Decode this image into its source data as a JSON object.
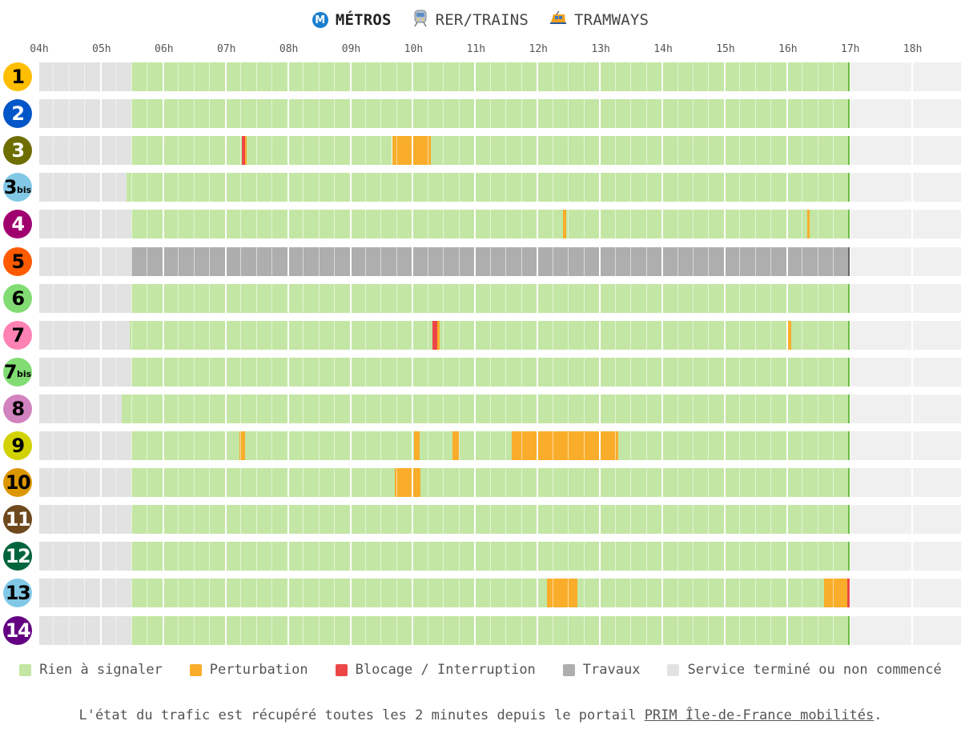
{
  "tabs": [
    {
      "label": "MÉTROS",
      "icon": "metro-icon",
      "active": true
    },
    {
      "label": "RER/TRAINS",
      "icon": "train-icon",
      "active": false
    },
    {
      "label": "TRAMWAYS",
      "icon": "tram-icon",
      "active": false
    }
  ],
  "metro_icon_letter": "M",
  "timeline": {
    "hours": [
      "04h",
      "05h",
      "06h",
      "07h",
      "08h",
      "09h",
      "10h",
      "11h",
      "12h",
      "13h",
      "14h",
      "15h",
      "16h",
      "17h",
      "18h"
    ],
    "start_hour": 4,
    "end_hour": 18.8,
    "current_time_hour": 17.0
  },
  "colors": {
    "ok": "#c3e6a4",
    "perturbation": "#f9ad2a",
    "blocage": "#ec4747",
    "travaux": "#aeaeae",
    "closed": "#e2e2e2",
    "future": "#f0f0f0",
    "nowline_ok": "#6bbd45",
    "nowline_travaux": "#666666"
  },
  "lines": [
    {
      "id": "line-1",
      "num": "1",
      "bis": "",
      "color": "#ffbe00",
      "text": "#000000",
      "segments": [
        {
          "s": 4,
          "e": 5.5,
          "st": "closed"
        },
        {
          "s": 5.5,
          "e": 17,
          "st": "ok"
        }
      ]
    },
    {
      "id": "line-2",
      "num": "2",
      "bis": "",
      "color": "#0055c8",
      "text": "#ffffff",
      "segments": [
        {
          "s": 4,
          "e": 5.5,
          "st": "closed"
        },
        {
          "s": 5.5,
          "e": 17,
          "st": "ok"
        }
      ]
    },
    {
      "id": "line-3",
      "num": "3",
      "bis": "",
      "color": "#6e6e00",
      "text": "#ffffff",
      "segments": [
        {
          "s": 4,
          "e": 5.5,
          "st": "closed"
        },
        {
          "s": 5.5,
          "e": 7.27,
          "st": "ok"
        },
        {
          "s": 7.27,
          "e": 7.33,
          "st": "blocage"
        },
        {
          "s": 7.33,
          "e": 7.35,
          "st": "perturbation"
        },
        {
          "s": 7.35,
          "e": 9.68,
          "st": "ok"
        },
        {
          "s": 9.68,
          "e": 10.3,
          "st": "perturbation"
        },
        {
          "s": 10.3,
          "e": 17,
          "st": "ok"
        }
      ]
    },
    {
      "id": "line-3bis",
      "num": "3",
      "bis": "bis",
      "color": "#82c8e6",
      "text": "#000000",
      "segments": [
        {
          "s": 4,
          "e": 5.43,
          "st": "closed"
        },
        {
          "s": 5.43,
          "e": 17,
          "st": "ok"
        }
      ]
    },
    {
      "id": "line-4",
      "num": "4",
      "bis": "",
      "color": "#a0006e",
      "text": "#ffffff",
      "segments": [
        {
          "s": 4,
          "e": 5.5,
          "st": "closed"
        },
        {
          "s": 5.5,
          "e": 12.42,
          "st": "ok"
        },
        {
          "s": 12.42,
          "e": 12.47,
          "st": "perturbation"
        },
        {
          "s": 12.47,
          "e": 16.33,
          "st": "ok"
        },
        {
          "s": 16.33,
          "e": 16.38,
          "st": "perturbation"
        },
        {
          "s": 16.38,
          "e": 17,
          "st": "ok"
        }
      ]
    },
    {
      "id": "line-5",
      "num": "5",
      "bis": "",
      "color": "#ff5a00",
      "text": "#000000",
      "segments": [
        {
          "s": 4,
          "e": 5.5,
          "st": "closed"
        },
        {
          "s": 5.5,
          "e": 17,
          "st": "travaux"
        }
      ]
    },
    {
      "id": "line-6",
      "num": "6",
      "bis": "",
      "color": "#82dc73",
      "text": "#000000",
      "segments": [
        {
          "s": 4,
          "e": 5.5,
          "st": "closed"
        },
        {
          "s": 5.5,
          "e": 17,
          "st": "ok"
        }
      ]
    },
    {
      "id": "line-7",
      "num": "7",
      "bis": "",
      "color": "#ff82b4",
      "text": "#000000",
      "segments": [
        {
          "s": 4,
          "e": 5.48,
          "st": "closed"
        },
        {
          "s": 5.48,
          "e": 10.33,
          "st": "ok"
        },
        {
          "s": 10.33,
          "e": 10.4,
          "st": "blocage"
        },
        {
          "s": 10.4,
          "e": 10.44,
          "st": "perturbation"
        },
        {
          "s": 10.44,
          "e": 16.0,
          "st": "ok"
        },
        {
          "s": 16.0,
          "e": 16.08,
          "st": "perturbation"
        },
        {
          "s": 16.08,
          "e": 17,
          "st": "ok"
        }
      ]
    },
    {
      "id": "line-7bis",
      "num": "7",
      "bis": "bis",
      "color": "#82dc73",
      "text": "#000000",
      "segments": [
        {
          "s": 4,
          "e": 5.5,
          "st": "closed"
        },
        {
          "s": 5.5,
          "e": 17,
          "st": "ok"
        }
      ]
    },
    {
      "id": "line-8",
      "num": "8",
      "bis": "",
      "color": "#d282be",
      "text": "#000000",
      "segments": [
        {
          "s": 4,
          "e": 5.35,
          "st": "closed"
        },
        {
          "s": 5.35,
          "e": 17,
          "st": "ok"
        }
      ]
    },
    {
      "id": "line-9",
      "num": "9",
      "bis": "",
      "color": "#d2d200",
      "text": "#000000",
      "segments": [
        {
          "s": 4,
          "e": 5.5,
          "st": "closed"
        },
        {
          "s": 5.5,
          "e": 7.23,
          "st": "ok"
        },
        {
          "s": 7.23,
          "e": 7.32,
          "st": "perturbation"
        },
        {
          "s": 7.32,
          "e": 10.03,
          "st": "ok"
        },
        {
          "s": 10.03,
          "e": 10.12,
          "st": "perturbation"
        },
        {
          "s": 10.12,
          "e": 10.65,
          "st": "ok"
        },
        {
          "s": 10.65,
          "e": 10.75,
          "st": "perturbation"
        },
        {
          "s": 10.75,
          "e": 11.6,
          "st": "ok"
        },
        {
          "s": 11.6,
          "e": 13.3,
          "st": "perturbation"
        },
        {
          "s": 13.3,
          "e": 17,
          "st": "ok"
        }
      ]
    },
    {
      "id": "line-10",
      "num": "10",
      "bis": "",
      "color": "#dc9600",
      "text": "#000000",
      "segments": [
        {
          "s": 4,
          "e": 5.5,
          "st": "closed"
        },
        {
          "s": 5.5,
          "e": 9.73,
          "st": "ok"
        },
        {
          "s": 9.73,
          "e": 10.13,
          "st": "perturbation"
        },
        {
          "s": 10.13,
          "e": 17,
          "st": "ok"
        }
      ]
    },
    {
      "id": "line-11",
      "num": "11",
      "bis": "",
      "color": "#6e491e",
      "text": "#ffffff",
      "segments": [
        {
          "s": 4,
          "e": 5.5,
          "st": "closed"
        },
        {
          "s": 5.5,
          "e": 17,
          "st": "ok"
        }
      ]
    },
    {
      "id": "line-12",
      "num": "12",
      "bis": "",
      "color": "#00643c",
      "text": "#ffffff",
      "segments": [
        {
          "s": 4,
          "e": 5.5,
          "st": "closed"
        },
        {
          "s": 5.5,
          "e": 17,
          "st": "ok"
        }
      ]
    },
    {
      "id": "line-13",
      "num": "13",
      "bis": "",
      "color": "#82c8e6",
      "text": "#000000",
      "segments": [
        {
          "s": 4,
          "e": 5.5,
          "st": "closed"
        },
        {
          "s": 5.5,
          "e": 12.17,
          "st": "ok"
        },
        {
          "s": 12.17,
          "e": 12.65,
          "st": "perturbation"
        },
        {
          "s": 12.65,
          "e": 16.6,
          "st": "ok"
        },
        {
          "s": 16.6,
          "e": 16.98,
          "st": "perturbation"
        },
        {
          "s": 16.98,
          "e": 17,
          "st": "blocage"
        }
      ]
    },
    {
      "id": "line-14",
      "num": "14",
      "bis": "",
      "color": "#640082",
      "text": "#ffffff",
      "segments": [
        {
          "s": 4,
          "e": 5.5,
          "st": "closed"
        },
        {
          "s": 5.5,
          "e": 17,
          "st": "ok"
        }
      ]
    }
  ],
  "legend": [
    {
      "label": "Rien à signaler",
      "status": "ok"
    },
    {
      "label": "Perturbation",
      "status": "perturbation"
    },
    {
      "label": "Blocage / Interruption",
      "status": "blocage"
    },
    {
      "label": "Travaux",
      "status": "travaux"
    },
    {
      "label": "Service terminé ou non commencé",
      "status": "closed"
    }
  ],
  "footer": {
    "text_before": "L'état du trafic est récupéré toutes les 2 minutes depuis le portail ",
    "link_text": "PRIM Île-de-France mobilités",
    "text_after": "."
  }
}
